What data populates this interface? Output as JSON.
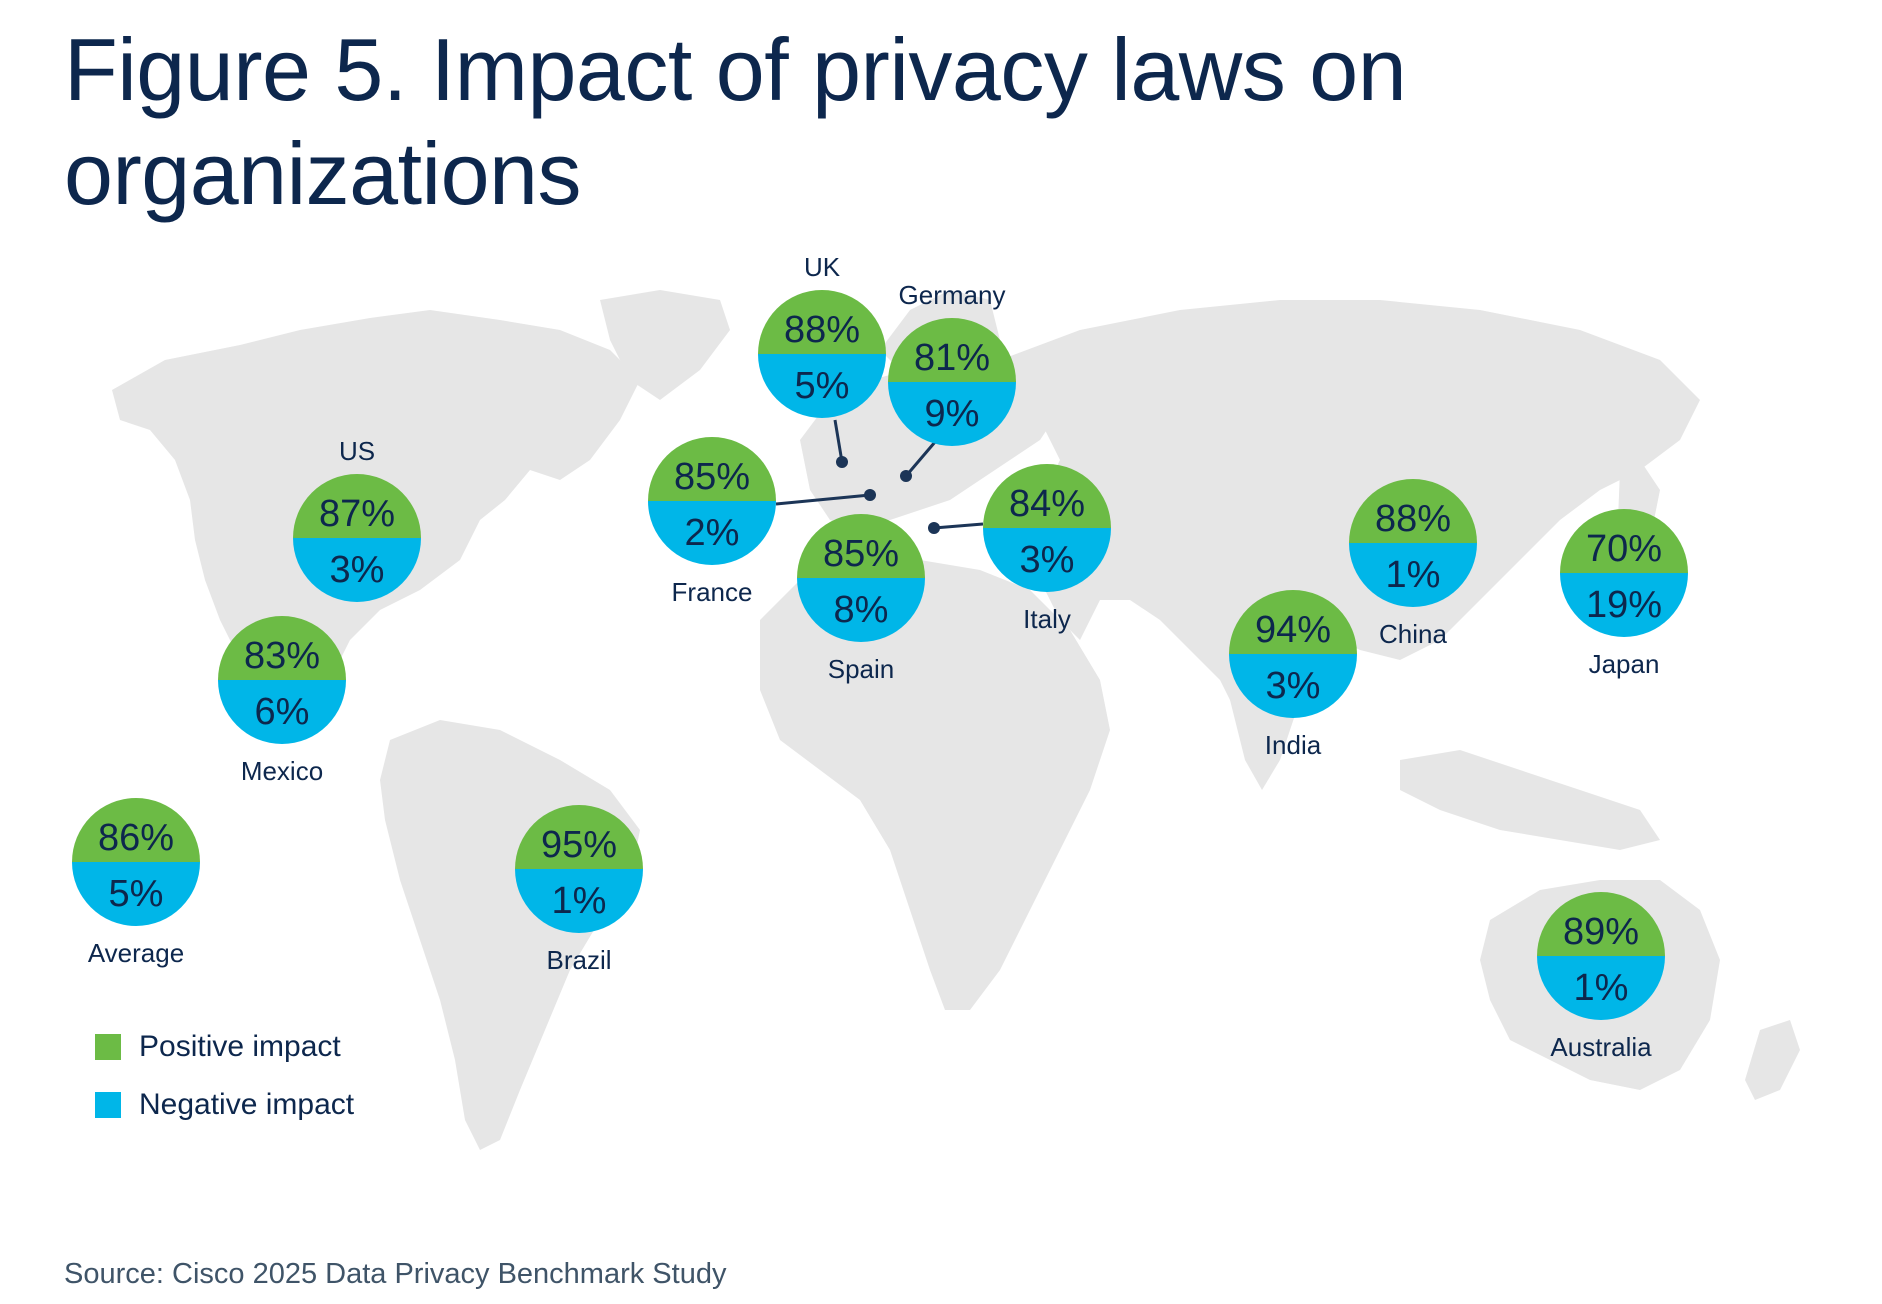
{
  "title": "Figure 5. Impact of privacy laws on organizations",
  "source": "Source: Cisco 2025 Data Privacy Benchmark Study",
  "colors": {
    "positive": "#6cbb45",
    "negative": "#00b6e8",
    "map": "#e6e6e6",
    "connector": "#1c3557",
    "text": "#0d274d"
  },
  "legend": [
    {
      "label": "Positive impact",
      "color": "#6cbb45"
    },
    {
      "label": "Negative impact",
      "color": "#00b6e8"
    }
  ],
  "countries": [
    {
      "name": "UK",
      "positive": "88%",
      "negative": "5%"
    },
    {
      "name": "Germany",
      "positive": "81%",
      "negative": "9%"
    },
    {
      "name": "US",
      "positive": "87%",
      "negative": "3%"
    },
    {
      "name": "France",
      "positive": "85%",
      "negative": "2%"
    },
    {
      "name": "Spain",
      "positive": "85%",
      "negative": "8%"
    },
    {
      "name": "Italy",
      "positive": "84%",
      "negative": "3%"
    },
    {
      "name": "China",
      "positive": "88%",
      "negative": "1%"
    },
    {
      "name": "Japan",
      "positive": "70%",
      "negative": "19%"
    },
    {
      "name": "India",
      "positive": "94%",
      "negative": "3%"
    },
    {
      "name": "Mexico",
      "positive": "83%",
      "negative": "6%"
    },
    {
      "name": "Average",
      "positive": "86%",
      "negative": "5%"
    },
    {
      "name": "Brazil",
      "positive": "95%",
      "negative": "1%"
    },
    {
      "name": "Australia",
      "positive": "89%",
      "negative": "1%"
    }
  ]
}
